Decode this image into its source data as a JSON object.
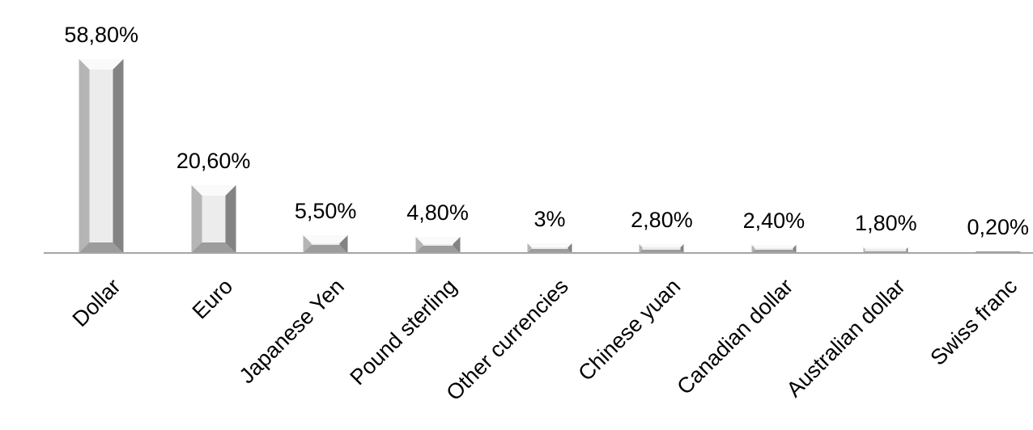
{
  "chart_data": {
    "type": "bar",
    "title": "",
    "xlabel": "",
    "ylabel": "",
    "categories": [
      "Dollar",
      "Euro",
      "Japanese Yen",
      "Pound sterling",
      "Other currencies",
      "Chinese yuan",
      "Canadian dollar",
      "Australian dollar",
      "Swiss franc"
    ],
    "values": [
      58.8,
      20.6,
      5.5,
      4.8,
      3,
      2.8,
      2.4,
      1.8,
      0.2
    ],
    "value_labels": [
      "58,80%",
      "20,60%",
      "5,50%",
      "4,80%",
      "3%",
      "2,80%",
      "2,40%",
      "1,80%",
      "0,20%"
    ],
    "ylim": [
      0,
      60
    ],
    "grid": false,
    "legend": false,
    "y_axis_visible": false,
    "bar_style": "3d-bevel",
    "category_label_rotation_deg": 45,
    "colors": {
      "bar_fill": "#ececec",
      "bar_bevel_light": "#fafafa",
      "bar_bevel_left": "#b5b5b5",
      "bar_bevel_right": "#838383",
      "bar_bevel_bottom": "#9c9c9c",
      "axis_line": "#a6a6a6",
      "label_text": "#000000",
      "background": "#ffffff"
    }
  }
}
